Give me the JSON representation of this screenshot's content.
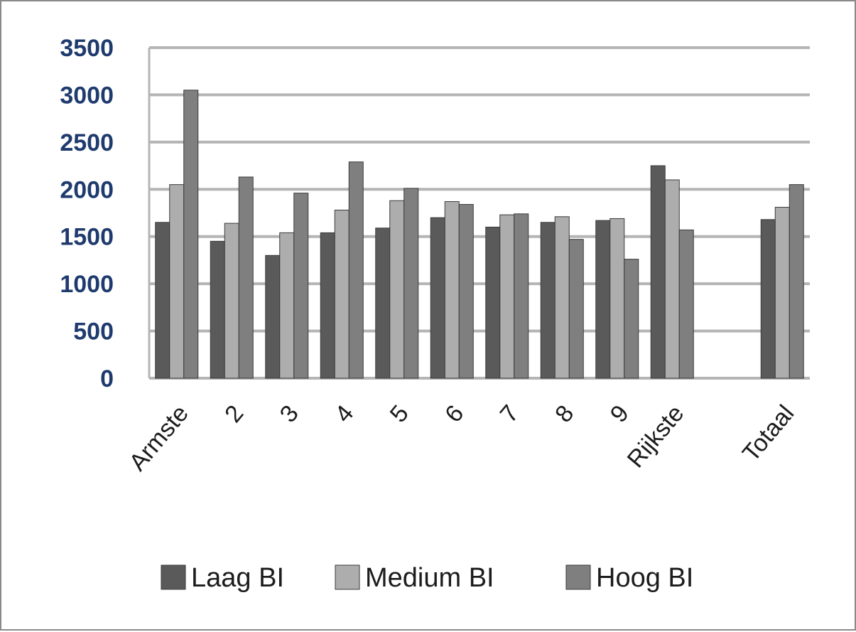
{
  "chart_data": {
    "type": "bar",
    "title": "",
    "xlabel": "",
    "ylabel": "",
    "ylim": [
      0,
      3500
    ],
    "yticks": [
      0,
      500,
      1000,
      1500,
      2000,
      2500,
      3000,
      3500
    ],
    "grid": true,
    "legend_position": "bottom",
    "categories": [
      "Armste",
      "2",
      "3",
      "4",
      "5",
      "6",
      "7",
      "8",
      "9",
      "Rijkste",
      "",
      "Totaal"
    ],
    "series": [
      {
        "name": "Laag BI",
        "color": "#5a5a5a",
        "values": [
          1650,
          1450,
          1300,
          1540,
          1590,
          1700,
          1600,
          1650,
          1670,
          2250,
          null,
          1680
        ]
      },
      {
        "name": "Medium BI",
        "color": "#adadad",
        "values": [
          2050,
          1640,
          1540,
          1780,
          1880,
          1870,
          1730,
          1710,
          1690,
          2100,
          null,
          1810
        ]
      },
      {
        "name": "Hoog BI",
        "color": "#7f7f7f",
        "values": [
          3050,
          2130,
          1960,
          2290,
          2010,
          1840,
          1740,
          1470,
          1260,
          1570,
          null,
          2050
        ]
      }
    ]
  }
}
